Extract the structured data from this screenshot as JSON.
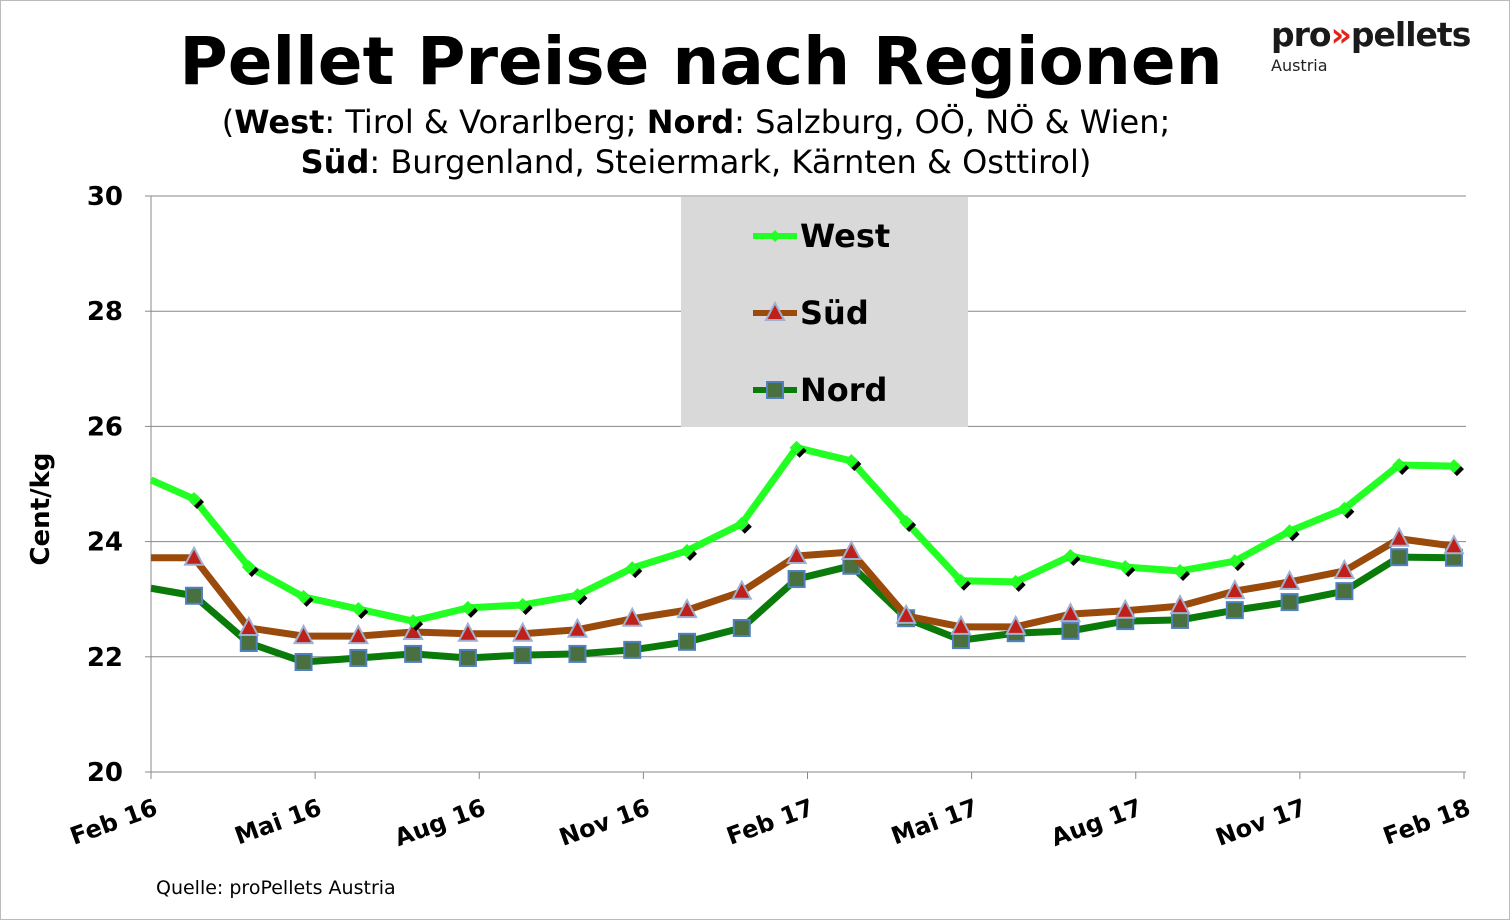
{
  "title": "Pellet Preise nach Regionen",
  "subtitle": {
    "open": "(",
    "west_b": "West",
    "west_t": ": Tirol & Vorarlberg; ",
    "nord_b": "Nord",
    "nord_t": ": Salzburg, OÖ, NÖ & Wien;",
    "sued_b": "Süd",
    "sued_t": ": Burgenland, Steiermark, Kärnten & Osttirol)"
  },
  "logo": {
    "pro": "pro",
    "arrows": "»",
    "pellets": "pellets",
    "country": "Austria"
  },
  "source": "Quelle: proPellets Austria",
  "chart_data": {
    "type": "line",
    "ylabel": "Cent/kg",
    "ylim": [
      20,
      30
    ],
    "yticks": [
      "20",
      "22",
      "24",
      "26",
      "28",
      "30"
    ],
    "xtick_labels": [
      "Feb 16",
      "Mai 16",
      "Aug 16",
      "Nov 16",
      "Feb 17",
      "Mai 17",
      "Aug 17",
      "Nov 17",
      "Feb 18"
    ],
    "grid": "horizontal",
    "legend": "top-center",
    "series": [
      {
        "name": "West",
        "color": "#22ff22",
        "marker": "diamond",
        "values": [
          25.07,
          24.74,
          23.56,
          23.04,
          22.83,
          22.62,
          22.85,
          22.9,
          23.07,
          23.54,
          23.84,
          24.31,
          25.63,
          25.4,
          24.34,
          23.32,
          23.3,
          23.75,
          23.56,
          23.49,
          23.66,
          24.18,
          24.57,
          25.33,
          25.31
        ]
      },
      {
        "name": "Süd",
        "color": "#9a4a0a",
        "marker": "triangle",
        "values": [
          23.72,
          23.72,
          22.5,
          22.36,
          22.36,
          22.43,
          22.4,
          22.4,
          22.47,
          22.66,
          22.81,
          23.13,
          23.75,
          23.82,
          22.71,
          22.52,
          22.52,
          22.74,
          22.8,
          22.88,
          23.14,
          23.3,
          23.49,
          24.05,
          23.92
        ]
      },
      {
        "name": "Nord",
        "color": "#0a7a0a",
        "marker": "square",
        "values": [
          23.19,
          23.06,
          22.24,
          21.91,
          21.98,
          22.05,
          21.98,
          22.03,
          22.05,
          22.12,
          22.26,
          22.5,
          23.35,
          23.58,
          22.67,
          22.29,
          22.41,
          22.45,
          22.62,
          22.64,
          22.81,
          22.95,
          23.14,
          23.73,
          23.72
        ]
      }
    ]
  }
}
